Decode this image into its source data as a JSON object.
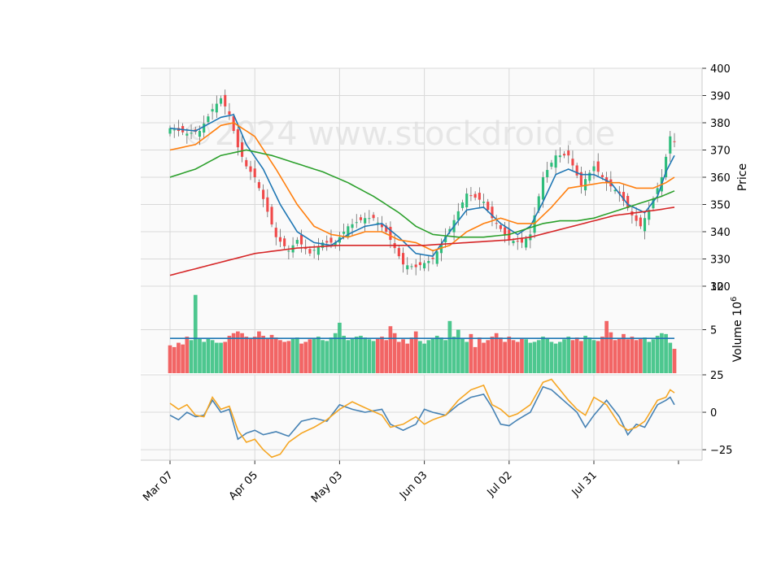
{
  "watermark": "©2024 www.stockdroid.de",
  "colors": {
    "up": "#2ebd7b",
    "down": "#f04a4a",
    "volume_ma": "#1f77b4",
    "ma_short": "#1f77b4",
    "ma_mid": "#ff7f0e",
    "ma_long": "#2ca02c",
    "ma_longest": "#d62728",
    "osc_a": "#4682b4",
    "osc_b": "#f5a623",
    "grid": "#d9d9d9",
    "panel_bg": "#fafafa"
  },
  "chart_data": [
    {
      "type": "candlestick",
      "ylabel": "Price",
      "ylim": [
        320,
        400
      ],
      "yticks": [
        320,
        330,
        340,
        350,
        360,
        370,
        380,
        390,
        400
      ],
      "x_tick_labels": [
        "Mar 07",
        "Apr 05",
        "May 03",
        "Jun 03",
        "Jul 02",
        "Jul 31"
      ],
      "x_tick_index": [
        0,
        20,
        40,
        60,
        80,
        100
      ],
      "bars": 120,
      "close_anchors": [
        [
          0,
          378
        ],
        [
          4,
          376
        ],
        [
          7,
          377
        ],
        [
          10,
          385
        ],
        [
          12,
          389
        ],
        [
          14,
          383
        ],
        [
          16,
          371
        ],
        [
          18,
          364
        ],
        [
          20,
          360
        ],
        [
          22,
          352
        ],
        [
          25,
          338
        ],
        [
          28,
          333
        ],
        [
          30,
          337
        ],
        [
          33,
          332
        ],
        [
          36,
          336
        ],
        [
          39,
          336
        ],
        [
          42,
          342
        ],
        [
          46,
          345
        ],
        [
          48,
          345
        ],
        [
          51,
          340
        ],
        [
          55,
          328
        ],
        [
          58,
          327
        ],
        [
          62,
          330
        ],
        [
          66,
          341
        ],
        [
          70,
          354
        ],
        [
          74,
          351
        ],
        [
          76,
          345
        ],
        [
          80,
          337
        ],
        [
          83,
          336
        ],
        [
          85,
          339
        ],
        [
          88,
          360
        ],
        [
          91,
          368
        ],
        [
          94,
          368
        ],
        [
          97,
          357
        ],
        [
          100,
          364
        ],
        [
          103,
          358
        ],
        [
          106,
          354
        ],
        [
          109,
          346
        ],
        [
          111,
          342
        ],
        [
          113,
          348
        ],
        [
          116,
          360
        ],
        [
          118,
          375
        ],
        [
          119,
          373
        ]
      ],
      "series": [
        {
          "name": "",
          "anchors": [
            [
              0,
              378
            ],
            [
              6,
              377
            ],
            [
              12,
              382
            ],
            [
              15,
              383
            ],
            [
              18,
              372
            ],
            [
              22,
              363
            ],
            [
              26,
              350
            ],
            [
              30,
              340
            ],
            [
              34,
              336
            ],
            [
              38,
              335
            ],
            [
              42,
              339
            ],
            [
              46,
              342
            ],
            [
              50,
              343
            ],
            [
              54,
              338
            ],
            [
              58,
              332
            ],
            [
              62,
              331
            ],
            [
              66,
              340
            ],
            [
              70,
              348
            ],
            [
              74,
              349
            ],
            [
              78,
              343
            ],
            [
              82,
              339
            ],
            [
              85,
              342
            ],
            [
              88,
              351
            ],
            [
              91,
              361
            ],
            [
              94,
              363
            ],
            [
              97,
              361
            ],
            [
              100,
              361
            ],
            [
              104,
              358
            ],
            [
              108,
              350
            ],
            [
              112,
              347
            ],
            [
              115,
              353
            ],
            [
              117,
              362
            ],
            [
              119,
              368
            ]
          ]
        },
        {
          "name": "",
          "anchors": [
            [
              0,
              370
            ],
            [
              6,
              372
            ],
            [
              12,
              379
            ],
            [
              15,
              380
            ],
            [
              20,
              375
            ],
            [
              25,
              363
            ],
            [
              30,
              350
            ],
            [
              34,
              342
            ],
            [
              38,
              339
            ],
            [
              42,
              338
            ],
            [
              46,
              340
            ],
            [
              50,
              340
            ],
            [
              54,
              337
            ],
            [
              58,
              336
            ],
            [
              62,
              333
            ],
            [
              66,
              335
            ],
            [
              70,
              340
            ],
            [
              74,
              343
            ],
            [
              78,
              345
            ],
            [
              82,
              343
            ],
            [
              86,
              343
            ],
            [
              90,
              349
            ],
            [
              94,
              356
            ],
            [
              98,
              357
            ],
            [
              102,
              358
            ],
            [
              106,
              358
            ],
            [
              110,
              356
            ],
            [
              114,
              356
            ],
            [
              117,
              358
            ],
            [
              119,
              360
            ]
          ]
        },
        {
          "name": "",
          "anchors": [
            [
              0,
              360
            ],
            [
              6,
              363
            ],
            [
              12,
              368
            ],
            [
              18,
              370
            ],
            [
              24,
              368
            ],
            [
              30,
              365
            ],
            [
              36,
              362
            ],
            [
              42,
              358
            ],
            [
              48,
              353
            ],
            [
              54,
              347
            ],
            [
              58,
              342
            ],
            [
              62,
              339
            ],
            [
              68,
              338
            ],
            [
              74,
              338
            ],
            [
              80,
              339
            ],
            [
              84,
              341
            ],
            [
              88,
              343
            ],
            [
              92,
              344
            ],
            [
              96,
              344
            ],
            [
              100,
              345
            ],
            [
              104,
              347
            ],
            [
              108,
              349
            ],
            [
              112,
              351
            ],
            [
              116,
              353
            ],
            [
              119,
              355
            ]
          ]
        },
        {
          "name": "",
          "anchors": [
            [
              0,
              324
            ],
            [
              10,
              328
            ],
            [
              20,
              332
            ],
            [
              30,
              334
            ],
            [
              40,
              335
            ],
            [
              50,
              335
            ],
            [
              60,
              335
            ],
            [
              70,
              336
            ],
            [
              80,
              337
            ],
            [
              85,
              338
            ],
            [
              90,
              340
            ],
            [
              95,
              342
            ],
            [
              100,
              344
            ],
            [
              105,
              346
            ],
            [
              110,
              347
            ],
            [
              115,
              348
            ],
            [
              119,
              349
            ]
          ]
        }
      ]
    },
    {
      "type": "bar",
      "ylabel": "Volume  10^6",
      "ylim": [
        0,
        10
      ],
      "yticks": [
        5,
        10
      ],
      "volume_pattern": [
        3.2,
        3.0,
        3.5,
        3.3,
        4.2,
        3.8,
        9.0,
        4.0,
        3.6,
        4.0,
        3.8,
        3.5,
        3.5,
        3.6,
        4.3,
        4.6,
        4.8,
        4.6,
        4.2,
        4.0,
        4.2,
        4.8,
        4.3,
        4.0,
        4.4,
        4.1,
        3.8,
        3.6,
        3.7,
        4.0,
        4.1,
        3.4,
        3.6,
        3.9,
        4.0,
        4.2,
        3.8,
        3.7,
        4.1,
        4.6,
        5.8,
        4.3,
        3.8,
        4.0,
        4.2,
        4.3,
        4.1,
        3.9,
        3.7,
        4.0,
        4.2,
        3.8,
        5.4,
        4.6,
        3.6,
        3.9,
        3.4,
        4.1,
        4.8,
        3.7,
        3.4,
        3.8,
        4.0,
        4.3,
        4.1,
        3.8,
        6.0,
        4.2,
        5.0,
        4.0,
        3.6,
        4.5,
        3.0,
        4.1,
        3.5,
        3.8,
        4.2,
        4.6,
        4.1,
        3.6,
        4.2,
        3.8,
        3.6,
        4.0,
        3.9,
        3.5,
        3.6,
        3.8,
        4.2,
        4.0,
        3.6,
        3.4,
        3.6,
        3.9,
        4.2,
        3.8,
        4.1,
        3.7,
        4.3,
        4.1,
        3.8,
        3.7,
        4.2,
        6.0,
        4.7,
        3.8,
        4.0,
        4.5,
        3.9,
        4.2,
        3.8,
        4.0,
        4.1,
        3.6,
        3.9,
        4.3,
        4.6,
        4.5,
        3.5,
        2.8
      ],
      "volume_ma": 4.0
    },
    {
      "type": "line",
      "ylim": [
        -32,
        25
      ],
      "yticks": [
        -25,
        0,
        25
      ],
      "series": [
        {
          "name": "",
          "anchors": [
            [
              0,
              -2
            ],
            [
              2,
              -5
            ],
            [
              4,
              0
            ],
            [
              6,
              -3
            ],
            [
              8,
              -2
            ],
            [
              10,
              8
            ],
            [
              12,
              0
            ],
            [
              14,
              2
            ],
            [
              16,
              -18
            ],
            [
              18,
              -14
            ],
            [
              20,
              -12
            ],
            [
              22,
              -15
            ],
            [
              25,
              -13
            ],
            [
              28,
              -16
            ],
            [
              31,
              -6
            ],
            [
              34,
              -4
            ],
            [
              37,
              -6
            ],
            [
              40,
              5
            ],
            [
              43,
              2
            ],
            [
              46,
              0
            ],
            [
              50,
              2
            ],
            [
              52,
              -8
            ],
            [
              55,
              -12
            ],
            [
              58,
              -8
            ],
            [
              60,
              2
            ],
            [
              62,
              0
            ],
            [
              65,
              -2
            ],
            [
              68,
              5
            ],
            [
              71,
              10
            ],
            [
              74,
              12
            ],
            [
              76,
              3
            ],
            [
              78,
              -8
            ],
            [
              80,
              -9
            ],
            [
              82,
              -5
            ],
            [
              85,
              0
            ],
            [
              88,
              17
            ],
            [
              90,
              15
            ],
            [
              92,
              10
            ],
            [
              94,
              5
            ],
            [
              96,
              0
            ],
            [
              98,
              -10
            ],
            [
              100,
              -2
            ],
            [
              103,
              8
            ],
            [
              106,
              -3
            ],
            [
              108,
              -15
            ],
            [
              110,
              -8
            ],
            [
              112,
              -10
            ],
            [
              115,
              5
            ],
            [
              117,
              8
            ],
            [
              118,
              10
            ],
            [
              119,
              5
            ]
          ]
        },
        {
          "name": "",
          "anchors": [
            [
              0,
              6
            ],
            [
              2,
              2
            ],
            [
              4,
              5
            ],
            [
              6,
              -2
            ],
            [
              8,
              -3
            ],
            [
              10,
              10
            ],
            [
              12,
              2
            ],
            [
              14,
              4
            ],
            [
              16,
              -12
            ],
            [
              18,
              -20
            ],
            [
              20,
              -18
            ],
            [
              22,
              -25
            ],
            [
              24,
              -30
            ],
            [
              26,
              -28
            ],
            [
              28,
              -20
            ],
            [
              31,
              -14
            ],
            [
              34,
              -10
            ],
            [
              37,
              -5
            ],
            [
              40,
              2
            ],
            [
              43,
              7
            ],
            [
              46,
              3
            ],
            [
              50,
              -2
            ],
            [
              52,
              -10
            ],
            [
              55,
              -8
            ],
            [
              58,
              -3
            ],
            [
              60,
              -8
            ],
            [
              62,
              -5
            ],
            [
              65,
              -2
            ],
            [
              68,
              8
            ],
            [
              71,
              15
            ],
            [
              74,
              18
            ],
            [
              76,
              5
            ],
            [
              78,
              2
            ],
            [
              80,
              -3
            ],
            [
              82,
              -1
            ],
            [
              85,
              5
            ],
            [
              88,
              20
            ],
            [
              90,
              22
            ],
            [
              92,
              15
            ],
            [
              94,
              8
            ],
            [
              96,
              2
            ],
            [
              98,
              -2
            ],
            [
              100,
              10
            ],
            [
              103,
              5
            ],
            [
              106,
              -8
            ],
            [
              108,
              -12
            ],
            [
              110,
              -10
            ],
            [
              112,
              -6
            ],
            [
              115,
              8
            ],
            [
              117,
              10
            ],
            [
              118,
              15
            ],
            [
              119,
              13
            ]
          ]
        }
      ]
    }
  ]
}
